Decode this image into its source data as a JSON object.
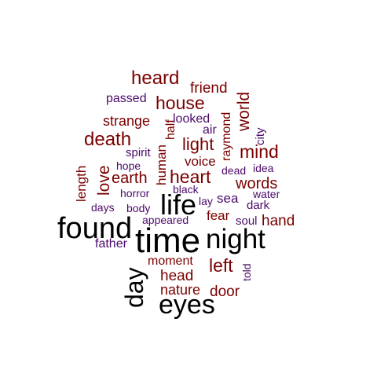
{
  "colors": {
    "black": "#000000",
    "maroon": "#7a0000",
    "purple": "#4a0a6a",
    "background": "#ffffff"
  },
  "words": [
    {
      "text": "time",
      "color": "black"
    },
    {
      "text": "found",
      "color": "black"
    },
    {
      "text": "night",
      "color": "black"
    },
    {
      "text": "life",
      "color": "black"
    },
    {
      "text": "eyes",
      "color": "black"
    },
    {
      "text": "day",
      "color": "black"
    },
    {
      "text": "heard",
      "color": "maroon"
    },
    {
      "text": "house",
      "color": "maroon"
    },
    {
      "text": "death",
      "color": "maroon"
    },
    {
      "text": "mind",
      "color": "maroon"
    },
    {
      "text": "heart",
      "color": "maroon"
    },
    {
      "text": "light",
      "color": "maroon"
    },
    {
      "text": "love",
      "color": "maroon"
    },
    {
      "text": "earth",
      "color": "maroon"
    },
    {
      "text": "words",
      "color": "maroon"
    },
    {
      "text": "world",
      "color": "maroon"
    },
    {
      "text": "strange",
      "color": "maroon"
    },
    {
      "text": "friend",
      "color": "maroon"
    },
    {
      "text": "left",
      "color": "maroon"
    },
    {
      "text": "head",
      "color": "maroon"
    },
    {
      "text": "door",
      "color": "maroon"
    },
    {
      "text": "hand",
      "color": "maroon"
    },
    {
      "text": "nature",
      "color": "maroon"
    },
    {
      "text": "moment",
      "color": "maroon"
    },
    {
      "text": "length",
      "color": "maroon"
    },
    {
      "text": "human",
      "color": "maroon"
    },
    {
      "text": "half",
      "color": "maroon"
    },
    {
      "text": "raymond",
      "color": "maroon"
    },
    {
      "text": "voice",
      "color": "maroon"
    },
    {
      "text": "fear",
      "color": "maroon"
    },
    {
      "text": "looked",
      "color": "purple"
    },
    {
      "text": "passed",
      "color": "purple"
    },
    {
      "text": "air",
      "color": "purple"
    },
    {
      "text": "city",
      "color": "purple"
    },
    {
      "text": "spirit",
      "color": "purple"
    },
    {
      "text": "hope",
      "color": "purple"
    },
    {
      "text": "dead",
      "color": "purple"
    },
    {
      "text": "idea",
      "color": "purple"
    },
    {
      "text": "horror",
      "color": "purple"
    },
    {
      "text": "black",
      "color": "purple"
    },
    {
      "text": "sea",
      "color": "purple"
    },
    {
      "text": "water",
      "color": "purple"
    },
    {
      "text": "days",
      "color": "purple"
    },
    {
      "text": "body",
      "color": "purple"
    },
    {
      "text": "lay",
      "color": "purple"
    },
    {
      "text": "dark",
      "color": "purple"
    },
    {
      "text": "appeared",
      "color": "purple"
    },
    {
      "text": "soul",
      "color": "purple"
    },
    {
      "text": "father",
      "color": "purple"
    },
    {
      "text": "told",
      "color": "purple"
    }
  ]
}
